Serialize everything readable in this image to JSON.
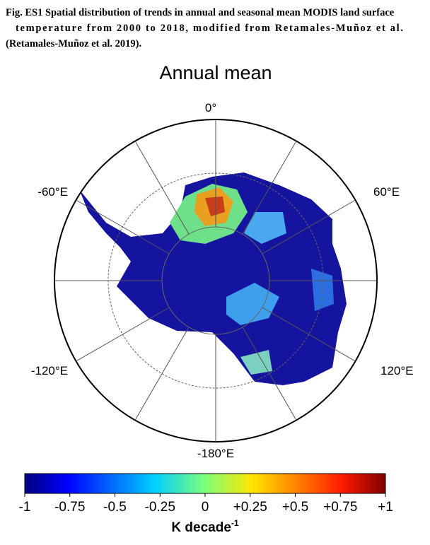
{
  "caption": [
    "Fig. ES1 Spatial distribution of trends in annual and seasonal mean MODIS land surface",
    "temperature from 2000 to 2018, modified from Retamales-Muñoz et al.",
    "(Retamales-Muñoz et al. 2019)."
  ],
  "title": "Annual mean",
  "longitude_labels": [
    "0°",
    "60°E",
    "120°E",
    "-180°E",
    "-120°E",
    "-60°E"
  ],
  "colorbar": {
    "lim": [
      -1,
      1
    ],
    "ticks": [
      -1,
      -0.75,
      -0.5,
      -0.25,
      0,
      {
        "value": 0.25,
        "label": "+0.25"
      },
      {
        "value": 0.5,
        "label": "+0.5"
      },
      {
        "value": 0.75,
        "label": "+0.75"
      },
      {
        "value": 1,
        "label": "+1"
      }
    ],
    "label": "K decade",
    "label_exponent": "-1"
  }
}
